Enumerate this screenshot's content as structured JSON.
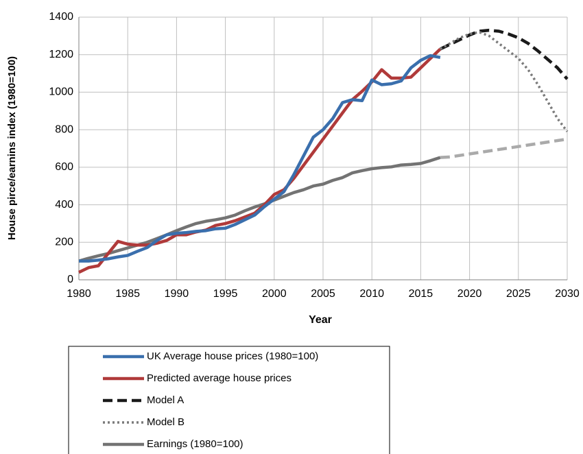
{
  "chart_data": {
    "type": "line",
    "x_label": "Year",
    "y_label": "House pirce/earnins index (1980=100)",
    "xlim": [
      1980,
      2030
    ],
    "xticks": [
      1980,
      1985,
      1990,
      1995,
      2000,
      2005,
      2010,
      2015,
      2020,
      2025,
      2030
    ],
    "ylim": [
      0,
      1400
    ],
    "yticks": [
      0,
      200,
      400,
      600,
      800,
      1000,
      1200,
      1400
    ],
    "grid": true,
    "legend": "bottom",
    "series": [
      {
        "name": "UK Average house prices (1980=100)",
        "color": "#3a6fad",
        "style": "solid",
        "x": [
          1980,
          1981,
          1982,
          1983,
          1984,
          1985,
          1986,
          1987,
          1988,
          1989,
          1990,
          1991,
          1992,
          1993,
          1994,
          1995,
          1996,
          1997,
          1998,
          1999,
          2000,
          2001,
          2002,
          2003,
          2004,
          2005,
          2006,
          2007,
          2008,
          2009,
          2010,
          2011,
          2012,
          2013,
          2014,
          2015,
          2016,
          2017
        ],
        "values": [
          100,
          100,
          105,
          112,
          122,
          130,
          152,
          172,
          210,
          240,
          248,
          252,
          258,
          262,
          272,
          275,
          295,
          320,
          345,
          390,
          430,
          470,
          560,
          660,
          760,
          800,
          860,
          945,
          960,
          955,
          1065,
          1040,
          1045,
          1060,
          1130,
          1170,
          1195,
          1185
        ]
      },
      {
        "name": "Predicted average house prices",
        "color": "#b03a3a",
        "style": "solid",
        "x": [
          1980,
          1981,
          1982,
          1983,
          1984,
          1985,
          1986,
          1987,
          1988,
          1989,
          1990,
          1991,
          1992,
          1993,
          1994,
          1995,
          1996,
          1997,
          1998,
          1999,
          2000,
          2001,
          2002,
          2003,
          2004,
          2005,
          2006,
          2007,
          2008,
          2009,
          2010,
          2011,
          2012,
          2013,
          2014,
          2015,
          2016,
          2017
        ],
        "values": [
          40,
          65,
          75,
          140,
          205,
          190,
          185,
          185,
          195,
          210,
          240,
          240,
          255,
          265,
          290,
          300,
          315,
          335,
          355,
          400,
          455,
          480,
          540,
          610,
          680,
          750,
          820,
          890,
          960,
          1005,
          1055,
          1120,
          1075,
          1075,
          1080,
          1130,
          1180,
          1230
        ]
      },
      {
        "name": "Model A",
        "color": "#1a1a1a",
        "style": "dashed",
        "x": [
          2017,
          2018,
          2019,
          2020,
          2021,
          2022,
          2023,
          2024,
          2025,
          2026,
          2027,
          2028,
          2029,
          2030
        ],
        "values": [
          1230,
          1255,
          1280,
          1305,
          1325,
          1330,
          1325,
          1310,
          1290,
          1260,
          1220,
          1175,
          1130,
          1070
        ]
      },
      {
        "name": "Model B",
        "color": "#7a7a7a",
        "style": "dotted",
        "x": [
          2017,
          2018,
          2019,
          2020,
          2021,
          2022,
          2023,
          2024,
          2025,
          2026,
          2027,
          2028,
          2029,
          2030
        ],
        "values": [
          1230,
          1260,
          1290,
          1310,
          1320,
          1300,
          1260,
          1220,
          1180,
          1120,
          1040,
          950,
          860,
          790
        ]
      },
      {
        "name": "Earnings (1980=100)",
        "color": "#737373",
        "style": "solid",
        "x": [
          1980,
          1981,
          1982,
          1983,
          1984,
          1985,
          1986,
          1987,
          1988,
          1989,
          1990,
          1991,
          1992,
          1993,
          1994,
          1995,
          1996,
          1997,
          1998,
          1999,
          2000,
          2001,
          2002,
          2003,
          2004,
          2005,
          2006,
          2007,
          2008,
          2009,
          2010,
          2011,
          2012,
          2013,
          2014,
          2015,
          2016,
          2017
        ],
        "values": [
          100,
          115,
          128,
          140,
          155,
          170,
          185,
          200,
          220,
          240,
          262,
          282,
          300,
          312,
          320,
          330,
          345,
          368,
          388,
          405,
          425,
          445,
          465,
          480,
          500,
          510,
          530,
          545,
          570,
          582,
          592,
          598,
          602,
          612,
          615,
          620,
          635,
          652
        ]
      },
      {
        "color": "#aaaaaa",
        "style": "dashed",
        "x": [
          2017,
          2018,
          2030
        ],
        "values": [
          652,
          655,
          750
        ]
      }
    ]
  }
}
